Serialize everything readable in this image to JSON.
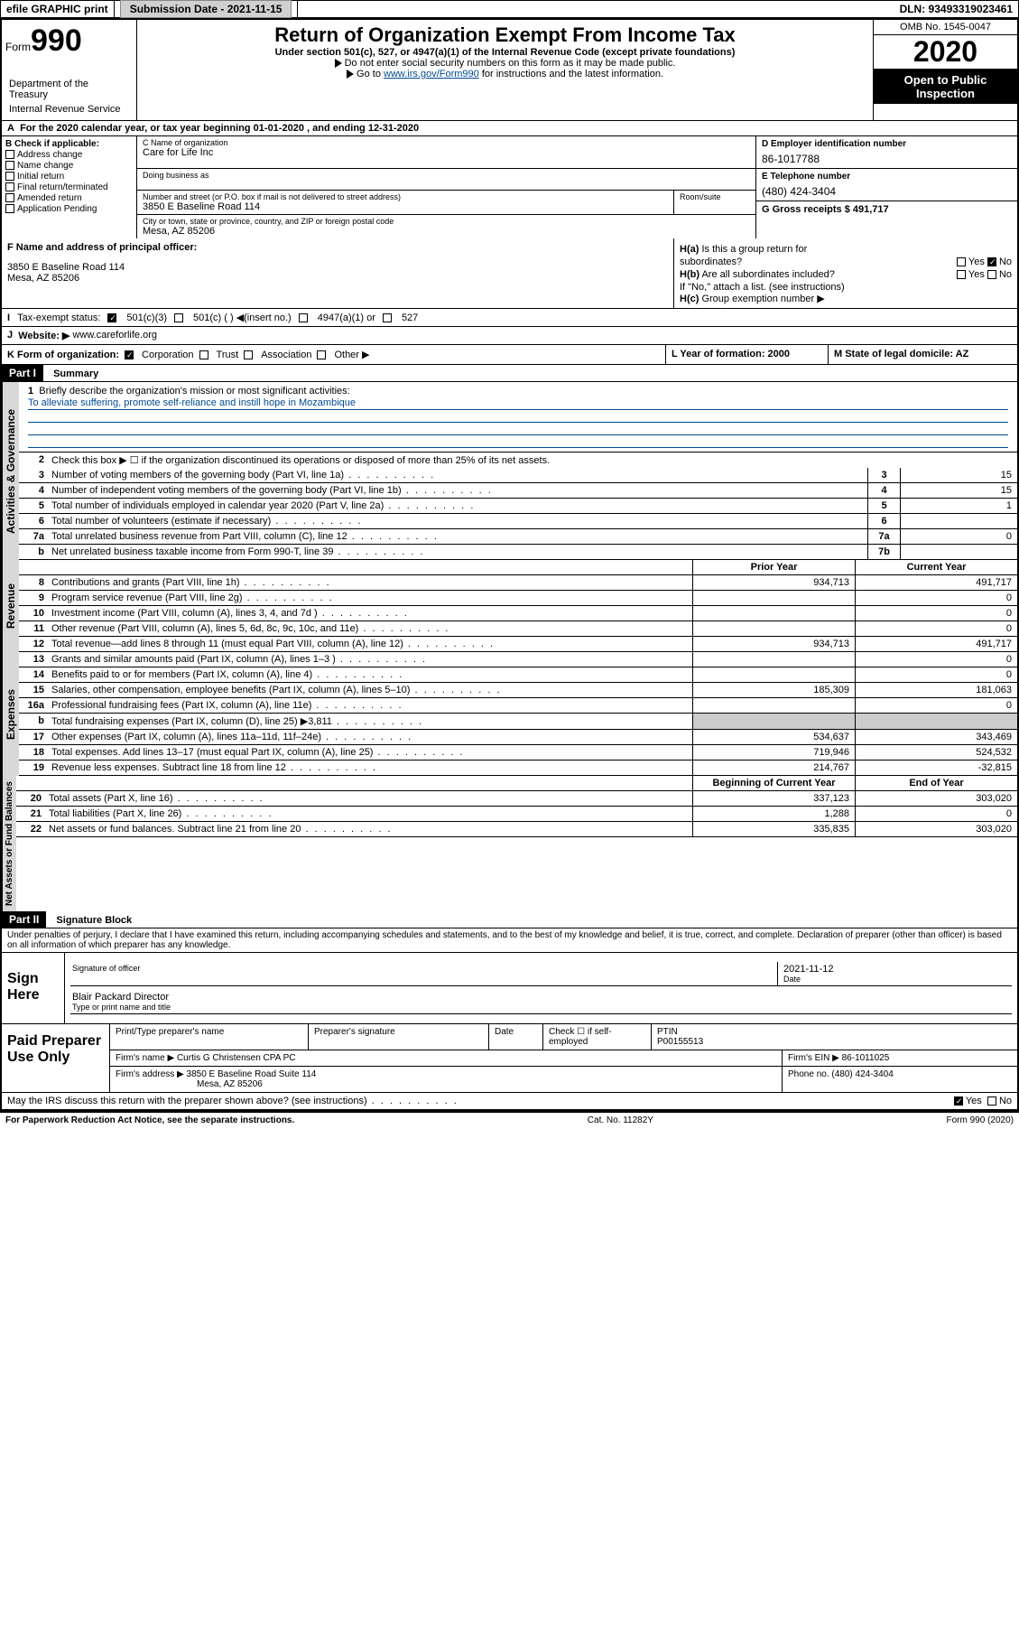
{
  "topbar": {
    "efile_label": "efile GRAPHIC print",
    "submission_label": "Submission Date - 2021-11-15",
    "dln_label": "DLN: 93493319023461"
  },
  "header": {
    "form_prefix": "Form",
    "form_number": "990",
    "title": "Return of Organization Exempt From Income Tax",
    "subtitle": "Under section 501(c), 527, or 4947(a)(1) of the Internal Revenue Code (except private foundations)",
    "instr1": "Do not enter social security numbers on this form as it may be made public.",
    "instr2_prefix": "Go to ",
    "instr2_link": "www.irs.gov/Form990",
    "instr2_suffix": " for instructions and the latest information.",
    "omb": "OMB No. 1545-0047",
    "year": "2020",
    "inspection": "Open to Public Inspection",
    "dept1": "Department of the Treasury",
    "dept2": "Internal Revenue Service"
  },
  "periodA": "For the 2020 calendar year, or tax year beginning 01-01-2020   , and ending 12-31-2020",
  "sectionB": {
    "label": "B Check if applicable:",
    "opts": [
      "Address change",
      "Name change",
      "Initial return",
      "Final return/terminated",
      "Amended return",
      "Application Pending"
    ]
  },
  "sectionC": {
    "name_label": "C Name of organization",
    "name": "Care for Life Inc",
    "dba_label": "Doing business as",
    "addr_label": "Number and street (or P.O. box if mail is not delivered to street address)",
    "addr": "3850 E Baseline Road 114",
    "room_label": "Room/suite",
    "city_label": "City or town, state or province, country, and ZIP or foreign postal code",
    "city": "Mesa, AZ  85206"
  },
  "sectionD": {
    "ein_label": "D Employer identification number",
    "ein": "86-1017788",
    "phone_label": "E Telephone number",
    "phone": "(480) 424-3404",
    "gross_label": "G Gross receipts $ 491,717"
  },
  "sectionF": {
    "label": "F  Name and address of principal officer:",
    "addr1": "3850 E Baseline Road 114",
    "addr2": "Mesa, AZ  85206"
  },
  "sectionH": {
    "ha": "Is this a group return for",
    "ha2": "subordinates?",
    "hb": "Are all subordinates included?",
    "hnote": "If \"No,\" attach a list. (see instructions)",
    "hc": "Group exemption number ▶"
  },
  "taxI": {
    "label": "Tax-exempt status:",
    "opt1": "501(c)(3)",
    "opt2": "501(c) (  ) ◀(insert no.)",
    "opt3": "4947(a)(1) or",
    "opt4": "527"
  },
  "rowJ": {
    "label": "Website: ▶",
    "val": "www.careforlife.org"
  },
  "rowK": {
    "label": "K Form of organization:",
    "opts": [
      "Corporation",
      "Trust",
      "Association",
      "Other ▶"
    ],
    "L_label": "L Year of formation: 2000",
    "M_label": "M State of legal domicile: AZ"
  },
  "part1": {
    "hdr": "Part I",
    "title": "Summary",
    "q1_label": "Briefly describe the organization's mission or most significant activities:",
    "q1_val": "To alleviate suffering, promote self-reliance and instill hope in Mozambique",
    "q2": "Check this box ▶ ☐  if the organization discontinued its operations or disposed of more than 25% of its net assets.",
    "lines_gov": [
      {
        "n": "3",
        "t": "Number of voting members of the governing body (Part VI, line 1a)",
        "box": "3",
        "v": "15"
      },
      {
        "n": "4",
        "t": "Number of independent voting members of the governing body (Part VI, line 1b)",
        "box": "4",
        "v": "15"
      },
      {
        "n": "5",
        "t": "Total number of individuals employed in calendar year 2020 (Part V, line 2a)",
        "box": "5",
        "v": "1"
      },
      {
        "n": "6",
        "t": "Total number of volunteers (estimate if necessary)",
        "box": "6",
        "v": ""
      },
      {
        "n": "7a",
        "t": "Total unrelated business revenue from Part VIII, column (C), line 12",
        "box": "7a",
        "v": "0"
      },
      {
        "n": "b",
        "t": "Net unrelated business taxable income from Form 990-T, line 39",
        "box": "7b",
        "v": ""
      }
    ],
    "col_prior": "Prior Year",
    "col_curr": "Current Year",
    "rev": [
      {
        "n": "8",
        "t": "Contributions and grants (Part VIII, line 1h)",
        "p": "934,713",
        "c": "491,717"
      },
      {
        "n": "9",
        "t": "Program service revenue (Part VIII, line 2g)",
        "p": "",
        "c": "0"
      },
      {
        "n": "10",
        "t": "Investment income (Part VIII, column (A), lines 3, 4, and 7d )",
        "p": "",
        "c": "0"
      },
      {
        "n": "11",
        "t": "Other revenue (Part VIII, column (A), lines 5, 6d, 8c, 9c, 10c, and 11e)",
        "p": "",
        "c": "0"
      },
      {
        "n": "12",
        "t": "Total revenue—add lines 8 through 11 (must equal Part VIII, column (A), line 12)",
        "p": "934,713",
        "c": "491,717"
      }
    ],
    "exp": [
      {
        "n": "13",
        "t": "Grants and similar amounts paid (Part IX, column (A), lines 1–3 )",
        "p": "",
        "c": "0"
      },
      {
        "n": "14",
        "t": "Benefits paid to or for members (Part IX, column (A), line 4)",
        "p": "",
        "c": "0"
      },
      {
        "n": "15",
        "t": "Salaries, other compensation, employee benefits (Part IX, column (A), lines 5–10)",
        "p": "185,309",
        "c": "181,063"
      },
      {
        "n": "16a",
        "t": "Professional fundraising fees (Part IX, column (A), line 11e)",
        "p": "",
        "c": "0"
      },
      {
        "n": "b",
        "t": "Total fundraising expenses (Part IX, column (D), line 25) ▶3,811",
        "p": "—",
        "c": "—"
      },
      {
        "n": "17",
        "t": "Other expenses (Part IX, column (A), lines 11a–11d, 11f–24e)",
        "p": "534,637",
        "c": "343,469"
      },
      {
        "n": "18",
        "t": "Total expenses. Add lines 13–17 (must equal Part IX, column (A), line 25)",
        "p": "719,946",
        "c": "524,532"
      },
      {
        "n": "19",
        "t": "Revenue less expenses. Subtract line 18 from line 12",
        "p": "214,767",
        "c": "-32,815"
      }
    ],
    "col_begin": "Beginning of Current Year",
    "col_end": "End of Year",
    "net": [
      {
        "n": "20",
        "t": "Total assets (Part X, line 16)",
        "p": "337,123",
        "c": "303,020"
      },
      {
        "n": "21",
        "t": "Total liabilities (Part X, line 26)",
        "p": "1,288",
        "c": "0"
      },
      {
        "n": "22",
        "t": "Net assets or fund balances. Subtract line 21 from line 20",
        "p": "335,835",
        "c": "303,020"
      }
    ]
  },
  "part2": {
    "hdr": "Part II",
    "title": "Signature Block",
    "text": "Under penalties of perjury, I declare that I have examined this return, including accompanying schedules and statements, and to the best of my knowledge and belief, it is true, correct, and complete. Declaration of preparer (other than officer) is based on all information of which preparer has any knowledge."
  },
  "sign": {
    "label": "Sign Here",
    "sig_label": "Signature of officer",
    "date_label": "Date",
    "date": "2021-11-12",
    "name": "Blair Packard  Director",
    "name_label": "Type or print name and title"
  },
  "prep": {
    "label": "Paid Preparer Use Only",
    "col1": "Print/Type preparer's name",
    "col2": "Preparer's signature",
    "col3": "Date",
    "col4": "Check ☐ if self-employed",
    "col5_label": "PTIN",
    "col5": "P00155513",
    "firm_label": "Firm's name    ▶",
    "firm": "Curtis G Christensen CPA PC",
    "ein_label": "Firm's EIN ▶",
    "ein": "86-1011025",
    "addr_label": "Firm's address ▶",
    "addr1": "3850 E Baseline Road Suite 114",
    "addr2": "Mesa, AZ  85206",
    "phone_label": "Phone no.",
    "phone": "(480) 424-3404"
  },
  "irs_discuss": "May the IRS discuss this return with the preparer shown above? (see instructions)",
  "footer": {
    "left": "For Paperwork Reduction Act Notice, see the separate instructions.",
    "mid": "Cat. No. 11282Y",
    "right": "Form 990 (2020)"
  },
  "vtabs": {
    "gov": "Activities & Governance",
    "rev": "Revenue",
    "exp": "Expenses",
    "net": "Net Assets or Fund Balances"
  },
  "yes": "Yes",
  "no": "No"
}
